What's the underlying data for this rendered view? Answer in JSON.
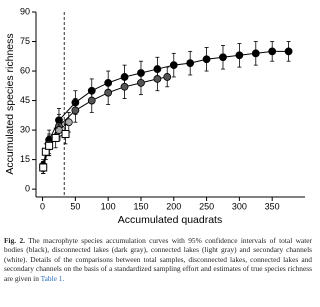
{
  "chart_data": {
    "type": "errorbar",
    "xlabel": "Accumulated quadrats",
    "ylabel": "Accumulated species richness",
    "xlim": [
      -10,
      400
    ],
    "xticks": [
      0,
      50,
      100,
      150,
      200,
      250,
      300,
      350
    ],
    "ylim": [
      -4,
      90
    ],
    "yticks": [
      0,
      15,
      30,
      45,
      60,
      75,
      90
    ],
    "vline_x": 33,
    "series": [
      {
        "color": "#000000",
        "marker": "circle",
        "x": [
          1,
          10,
          25,
          50,
          75,
          100,
          125,
          150,
          175,
          200,
          225,
          250,
          275,
          300,
          325,
          350,
          375
        ],
        "values": [
          12,
          25,
          35,
          44,
          50,
          54,
          57,
          59,
          61,
          63,
          64,
          66,
          67,
          68,
          69,
          70,
          70
        ],
        "errors": [
          3,
          5,
          6,
          6,
          6,
          6,
          6,
          6,
          6,
          6,
          6,
          6,
          6,
          6,
          6,
          5,
          5
        ]
      },
      {
        "color": "#555555",
        "marker": "circle",
        "x": [
          1,
          10,
          25,
          50,
          75,
          100,
          125,
          150,
          175,
          190
        ],
        "values": [
          11,
          23,
          32,
          40,
          45,
          49,
          52,
          54,
          56,
          57
        ],
        "errors": [
          3,
          5,
          6,
          6,
          6,
          6,
          6,
          6,
          6,
          5
        ]
      },
      {
        "color": "#aaaaaa",
        "marker": "circle",
        "x": [
          1,
          10,
          25,
          40
        ],
        "values": [
          11,
          22,
          30,
          34
        ],
        "errors": [
          3,
          5,
          5,
          5
        ]
      },
      {
        "color": "#ffffff",
        "marker": "square",
        "x": [
          1,
          5,
          10,
          20,
          35
        ],
        "values": [
          11,
          19,
          22,
          26,
          28
        ],
        "errors": [
          3,
          4,
          5,
          5,
          5
        ]
      }
    ]
  },
  "caption": {
    "label": "Fig. 2.",
    "text": "The macrophyte species accumulation curves with 95% confidence intervals of total water bodies (black), disconnected lakes (dark gray), connected lakes (light gray) and secondary channels (white). Details of the comparisons between total samples, disconnected lakes, connected lakes and secondary channels on the basis of a standardized sampling effort and estimates of true species richness are given in",
    "link": "Table 1."
  }
}
